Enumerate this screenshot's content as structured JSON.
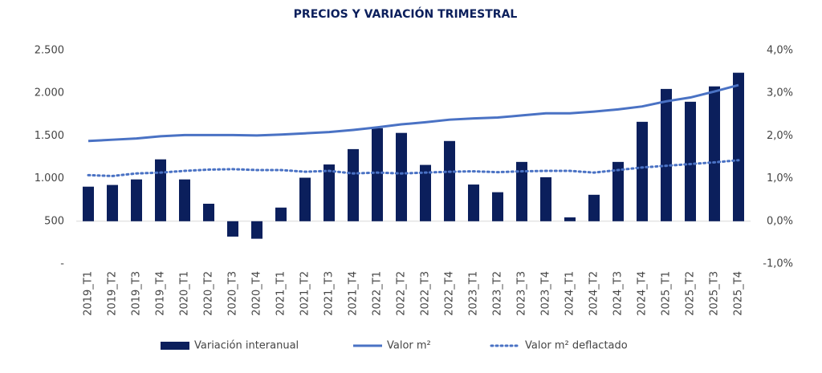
{
  "chart_data": {
    "type": "bar",
    "title": "PRECIOS Y VARIACIÓN TRIMESTRAL",
    "categories": [
      "2019_T1",
      "2019_T2",
      "2019_T3",
      "2019_T4",
      "2020_T1",
      "2020_T2",
      "2020_T3",
      "2020_T4",
      "2021_T1",
      "2021_T2",
      "2021_T3",
      "2021_T4",
      "2022_T1",
      "2022_T2",
      "2022_T3",
      "2022_T4",
      "2023_T1",
      "2023_T2",
      "2023_T3",
      "2023_T4",
      "2024_T1",
      "2024_T2",
      "2024_T3",
      "2024_T4",
      "2025_T1",
      "2025_T2",
      "2025_T3",
      "2025_T4"
    ],
    "series": [
      {
        "name": "Variación interanual",
        "type": "bar",
        "axis": "y2",
        "color": "#0b1f5c",
        "values": [
          0.81,
          0.85,
          0.98,
          1.45,
          0.98,
          0.41,
          -0.36,
          -0.41,
          0.32,
          1.02,
          1.33,
          1.69,
          2.18,
          2.07,
          1.32,
          1.88,
          0.86,
          0.68,
          1.39,
          1.03,
          0.09,
          0.62,
          1.39,
          2.33,
          3.1,
          2.8,
          3.16,
          3.48
        ]
      },
      {
        "name": "Valor m²",
        "type": "line",
        "color": "#4a72c4",
        "values": [
          1440,
          1455,
          1470,
          1495,
          1510,
          1510,
          1510,
          1505,
          1515,
          1530,
          1545,
          1570,
          1600,
          1635,
          1660,
          1690,
          1705,
          1715,
          1740,
          1765,
          1765,
          1785,
          1810,
          1845,
          1905,
          1950,
          2020,
          2095
        ]
      },
      {
        "name": "Valor m² deflactado",
        "type": "dotted-line",
        "color": "#4a72c4",
        "values": [
          1040,
          1030,
          1060,
          1070,
          1090,
          1105,
          1110,
          1100,
          1100,
          1080,
          1090,
          1060,
          1070,
          1060,
          1070,
          1080,
          1085,
          1075,
          1085,
          1090,
          1090,
          1070,
          1100,
          1130,
          1150,
          1170,
          1190,
          1215
        ]
      }
    ],
    "ylim": [
      0,
      2500
    ],
    "yticks": [
      {
        "value": 0,
        "label": "-"
      },
      500,
      {
        "value": 1000,
        "label": "1.000"
      },
      {
        "value": 1500,
        "label": "1.500"
      },
      {
        "value": 2000,
        "label": "2.000"
      },
      {
        "value": 2500,
        "label": "2.500"
      }
    ],
    "y2lim": [
      -1,
      4
    ],
    "y2ticks": [
      {
        "value": -1,
        "label": "-1,0%"
      },
      {
        "value": 0,
        "label": "0,0%"
      },
      {
        "value": 1,
        "label": "1,0%"
      },
      {
        "value": 2,
        "label": "2,0%"
      },
      {
        "value": 3,
        "label": "3,0%"
      },
      {
        "value": 4,
        "label": "4,0%"
      }
    ],
    "legend": "bottom",
    "grid": false
  }
}
